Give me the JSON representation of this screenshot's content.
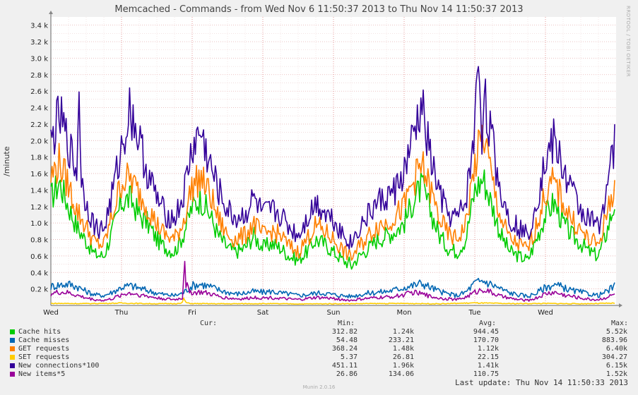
{
  "title": "Memcached - Commands - from Wed Nov  6 11:50:37 2013 to Thu Nov 14 11:50:37 2013",
  "side_label": "RRDTOOL / TOBI OETIKER",
  "footer": {
    "brand": "Munin 2.0.16",
    "last_update": "Last update: Thu Nov 14 11:50:33 2013"
  },
  "legend": {
    "headers": [
      "Cur:",
      "Min:",
      "Avg:",
      "Max:"
    ]
  },
  "chart_data": {
    "type": "line",
    "title": "Memcached - Commands - from Wed Nov  6 11:50:37 2013 to Thu Nov 14 11:50:37 2013",
    "ylabel": "/minute",
    "xlabel": "",
    "ylim": [
      0,
      3500
    ],
    "grid": true,
    "y_ticks": [
      200,
      400,
      600,
      800,
      1000,
      1200,
      1400,
      1600,
      1800,
      2000,
      2200,
      2400,
      2600,
      2800,
      3000,
      3200,
      3400
    ],
    "y_tick_labels": [
      "0.2 k",
      "0.4 k",
      "0.6 k",
      "0.8 k",
      "1.0 k",
      "1.2 k",
      "1.4 k",
      "1.6 k",
      "1.8 k",
      "2.0 k",
      "2.2 k",
      "2.4 k",
      "2.6 k",
      "2.8 k",
      "3.0 k",
      "3.2 k",
      "3.4 k"
    ],
    "x_ticks": [
      "Wed",
      "Thu",
      "Fri",
      "Sat",
      "Sun",
      "Mon",
      "Tue",
      "Wed"
    ],
    "x_range_days": [
      0,
      8
    ],
    "series": [
      {
        "name": "Cache hits",
        "color": "#00cc00",
        "stats": {
          "cur": "1.24k",
          "min": "312.82",
          "avg": "944.45",
          "max": "5.52k"
        },
        "x": [
          0,
          0.12,
          0.25,
          0.37,
          0.5,
          0.62,
          0.75,
          0.87,
          1,
          1.12,
          1.25,
          1.37,
          1.5,
          1.62,
          1.75,
          1.87,
          2,
          2.12,
          2.25,
          2.37,
          2.5,
          2.62,
          2.75,
          2.87,
          3,
          3.12,
          3.25,
          3.37,
          3.5,
          3.62,
          3.75,
          3.87,
          4,
          4.12,
          4.25,
          4.37,
          4.5,
          4.62,
          4.75,
          4.87,
          5,
          5.12,
          5.25,
          5.37,
          5.5,
          5.62,
          5.75,
          5.87,
          6,
          6.12,
          6.25,
          6.37,
          6.5,
          6.62,
          6.75,
          6.87,
          7,
          7.12,
          7.25,
          7.37,
          7.5,
          7.62,
          7.75,
          7.87,
          7.98
        ],
        "values": [
          1300,
          1500,
          1200,
          950,
          780,
          620,
          600,
          900,
          1250,
          1300,
          1100,
          1000,
          800,
          700,
          650,
          850,
          1200,
          1300,
          1100,
          850,
          700,
          650,
          700,
          850,
          700,
          750,
          700,
          600,
          550,
          650,
          800,
          750,
          650,
          560,
          480,
          600,
          700,
          800,
          850,
          900,
          1000,
          1250,
          1450,
          1150,
          850,
          700,
          650,
          800,
          1400,
          1550,
          1200,
          850,
          650,
          600,
          550,
          800,
          1100,
          1250,
          1000,
          850,
          750,
          650,
          600,
          900,
          1250
        ]
      },
      {
        "name": "Cache misses",
        "color": "#0066b3",
        "stats": {
          "cur": "233.21",
          "min": "54.48",
          "avg": "170.70",
          "max": "883.96"
        },
        "x": [
          0,
          0.12,
          0.25,
          0.37,
          0.5,
          0.62,
          0.75,
          0.87,
          1,
          1.12,
          1.25,
          1.37,
          1.5,
          1.62,
          1.75,
          1.87,
          2,
          2.12,
          2.25,
          2.37,
          2.5,
          2.62,
          2.75,
          2.87,
          3,
          3.12,
          3.25,
          3.37,
          3.5,
          3.62,
          3.75,
          3.87,
          4,
          4.12,
          4.25,
          4.37,
          4.5,
          4.62,
          4.75,
          4.87,
          5,
          5.12,
          5.25,
          5.37,
          5.5,
          5.62,
          5.75,
          5.87,
          6,
          6.12,
          6.25,
          6.37,
          6.5,
          6.62,
          6.75,
          6.87,
          7,
          7.12,
          7.25,
          7.37,
          7.5,
          7.62,
          7.75,
          7.87,
          7.98
        ],
        "values": [
          230,
          250,
          260,
          230,
          170,
          130,
          120,
          160,
          220,
          240,
          210,
          180,
          150,
          130,
          120,
          150,
          240,
          260,
          230,
          190,
          160,
          140,
          150,
          170,
          160,
          170,
          150,
          140,
          120,
          130,
          150,
          150,
          130,
          120,
          110,
          130,
          150,
          160,
          170,
          190,
          220,
          240,
          270,
          220,
          170,
          140,
          120,
          160,
          270,
          300,
          250,
          200,
          150,
          130,
          110,
          150,
          220,
          250,
          220,
          180,
          160,
          140,
          120,
          170,
          233
        ]
      },
      {
        "name": "GET requests",
        "color": "#ff8000",
        "stats": {
          "cur": "1.48k",
          "min": "368.24",
          "avg": "1.12k",
          "max": "6.40k"
        },
        "x": [
          0,
          0.12,
          0.25,
          0.37,
          0.5,
          0.62,
          0.75,
          0.87,
          1,
          1.12,
          1.25,
          1.37,
          1.5,
          1.62,
          1.75,
          1.87,
          2,
          2.12,
          2.25,
          2.37,
          2.5,
          2.62,
          2.75,
          2.87,
          3,
          3.12,
          3.25,
          3.37,
          3.5,
          3.62,
          3.75,
          3.87,
          4,
          4.12,
          4.25,
          4.37,
          4.5,
          4.62,
          4.75,
          4.87,
          5,
          5.12,
          5.25,
          5.37,
          5.5,
          5.62,
          5.75,
          5.87,
          6,
          6.12,
          6.25,
          6.37,
          6.5,
          6.62,
          6.75,
          6.87,
          7,
          7.12,
          7.25,
          7.37,
          7.5,
          7.62,
          7.75,
          7.87,
          7.98
        ],
        "values": [
          1550,
          1750,
          1450,
          1150,
          950,
          760,
          730,
          1100,
          1500,
          1550,
          1350,
          1200,
          980,
          850,
          800,
          1000,
          1450,
          1550,
          1350,
          1050,
          850,
          800,
          850,
          1000,
          850,
          900,
          850,
          720,
          650,
          800,
          970,
          900,
          800,
          680,
          580,
          720,
          850,
          970,
          1000,
          1080,
          1200,
          1500,
          1700,
          1400,
          1050,
          860,
          800,
          980,
          1700,
          2100,
          1500,
          1050,
          800,
          740,
          680,
          970,
          1350,
          1500,
          1250,
          1050,
          900,
          790,
          740,
          1100,
          1480
        ]
      },
      {
        "name": "SET requests",
        "color": "#ffcc00",
        "stats": {
          "cur": "26.81",
          "min": "5.37",
          "avg": "22.15",
          "max": "304.27"
        },
        "x": [
          0,
          0.5,
          1,
          1.5,
          1.85,
          1.88,
          1.92,
          2,
          2.5,
          3,
          3.5,
          4,
          4.5,
          5,
          5.5,
          6,
          6.5,
          7,
          7.5,
          7.98
        ],
        "values": [
          25,
          22,
          28,
          20,
          24,
          80,
          30,
          22,
          20,
          22,
          18,
          20,
          22,
          24,
          20,
          30,
          22,
          24,
          20,
          27
        ]
      },
      {
        "name": "New connections*100",
        "color": "#330099",
        "stats": {
          "cur": "1.96k",
          "min": "451.11",
          "avg": "1.41k",
          "max": "6.15k"
        },
        "x": [
          0,
          0.12,
          0.25,
          0.37,
          0.4,
          0.43,
          0.5,
          0.62,
          0.75,
          0.87,
          1,
          1.12,
          1.25,
          1.37,
          1.5,
          1.62,
          1.75,
          1.87,
          2,
          2.12,
          2.25,
          2.37,
          2.5,
          2.62,
          2.75,
          2.87,
          3,
          3.12,
          3.25,
          3.37,
          3.5,
          3.62,
          3.75,
          3.87,
          4,
          4.12,
          4.25,
          4.37,
          4.5,
          4.62,
          4.75,
          4.87,
          5,
          5.12,
          5.25,
          5.37,
          5.5,
          5.62,
          5.75,
          5.87,
          6,
          6.05,
          6.1,
          6.12,
          6.25,
          6.37,
          6.5,
          6.62,
          6.75,
          6.87,
          7,
          7.12,
          7.25,
          7.37,
          7.5,
          7.62,
          7.75,
          7.87,
          7.98
        ],
        "values": [
          1950,
          2300,
          1950,
          1600,
          2750,
          1500,
          1250,
          950,
          920,
          1350,
          1900,
          2400,
          2000,
          1600,
          1300,
          1100,
          1050,
          1300,
          1900,
          2100,
          1700,
          1400,
          1150,
          1050,
          1100,
          1300,
          1100,
          1150,
          1100,
          950,
          850,
          1050,
          1250,
          1150,
          1050,
          880,
          750,
          950,
          1100,
          1250,
          1300,
          1400,
          1600,
          2000,
          2400,
          1800,
          1350,
          1100,
          1050,
          1250,
          2100,
          3150,
          2000,
          2600,
          1950,
          1350,
          1050,
          950,
          850,
          1250,
          1750,
          2000,
          1650,
          1400,
          1150,
          1050,
          950,
          1450,
          1960
        ]
      },
      {
        "name": "New items*5",
        "color": "#990099",
        "stats": {
          "cur": "134.06",
          "min": "26.86",
          "avg": "110.75",
          "max": "1.52k"
        },
        "x": [
          0,
          0.12,
          0.25,
          0.37,
          0.5,
          0.62,
          0.75,
          0.87,
          1,
          1.12,
          1.25,
          1.37,
          1.5,
          1.62,
          1.75,
          1.87,
          1.89,
          1.91,
          1.95,
          2,
          2.12,
          2.25,
          2.37,
          2.5,
          2.62,
          2.75,
          2.87,
          3,
          3.12,
          3.25,
          3.37,
          3.5,
          3.62,
          3.75,
          3.87,
          4,
          4.12,
          4.25,
          4.37,
          4.5,
          4.62,
          4.75,
          4.87,
          5,
          5.12,
          5.25,
          5.37,
          5.5,
          5.62,
          5.75,
          5.87,
          6,
          6.12,
          6.25,
          6.37,
          6.5,
          6.62,
          6.75,
          6.87,
          7,
          7.12,
          7.25,
          7.37,
          7.5,
          7.62,
          7.75,
          7.87,
          7.98
        ],
        "values": [
          140,
          160,
          150,
          120,
          90,
          70,
          60,
          80,
          130,
          150,
          130,
          110,
          90,
          80,
          70,
          90,
          680,
          250,
          200,
          150,
          160,
          140,
          110,
          90,
          80,
          80,
          100,
          90,
          95,
          85,
          75,
          70,
          80,
          95,
          90,
          85,
          70,
          60,
          75,
          85,
          95,
          100,
          110,
          130,
          160,
          140,
          110,
          90,
          80,
          70,
          100,
          160,
          200,
          150,
          110,
          85,
          70,
          60,
          90,
          140,
          160,
          130,
          110,
          90,
          75,
          70,
          100,
          134
        ]
      }
    ]
  }
}
